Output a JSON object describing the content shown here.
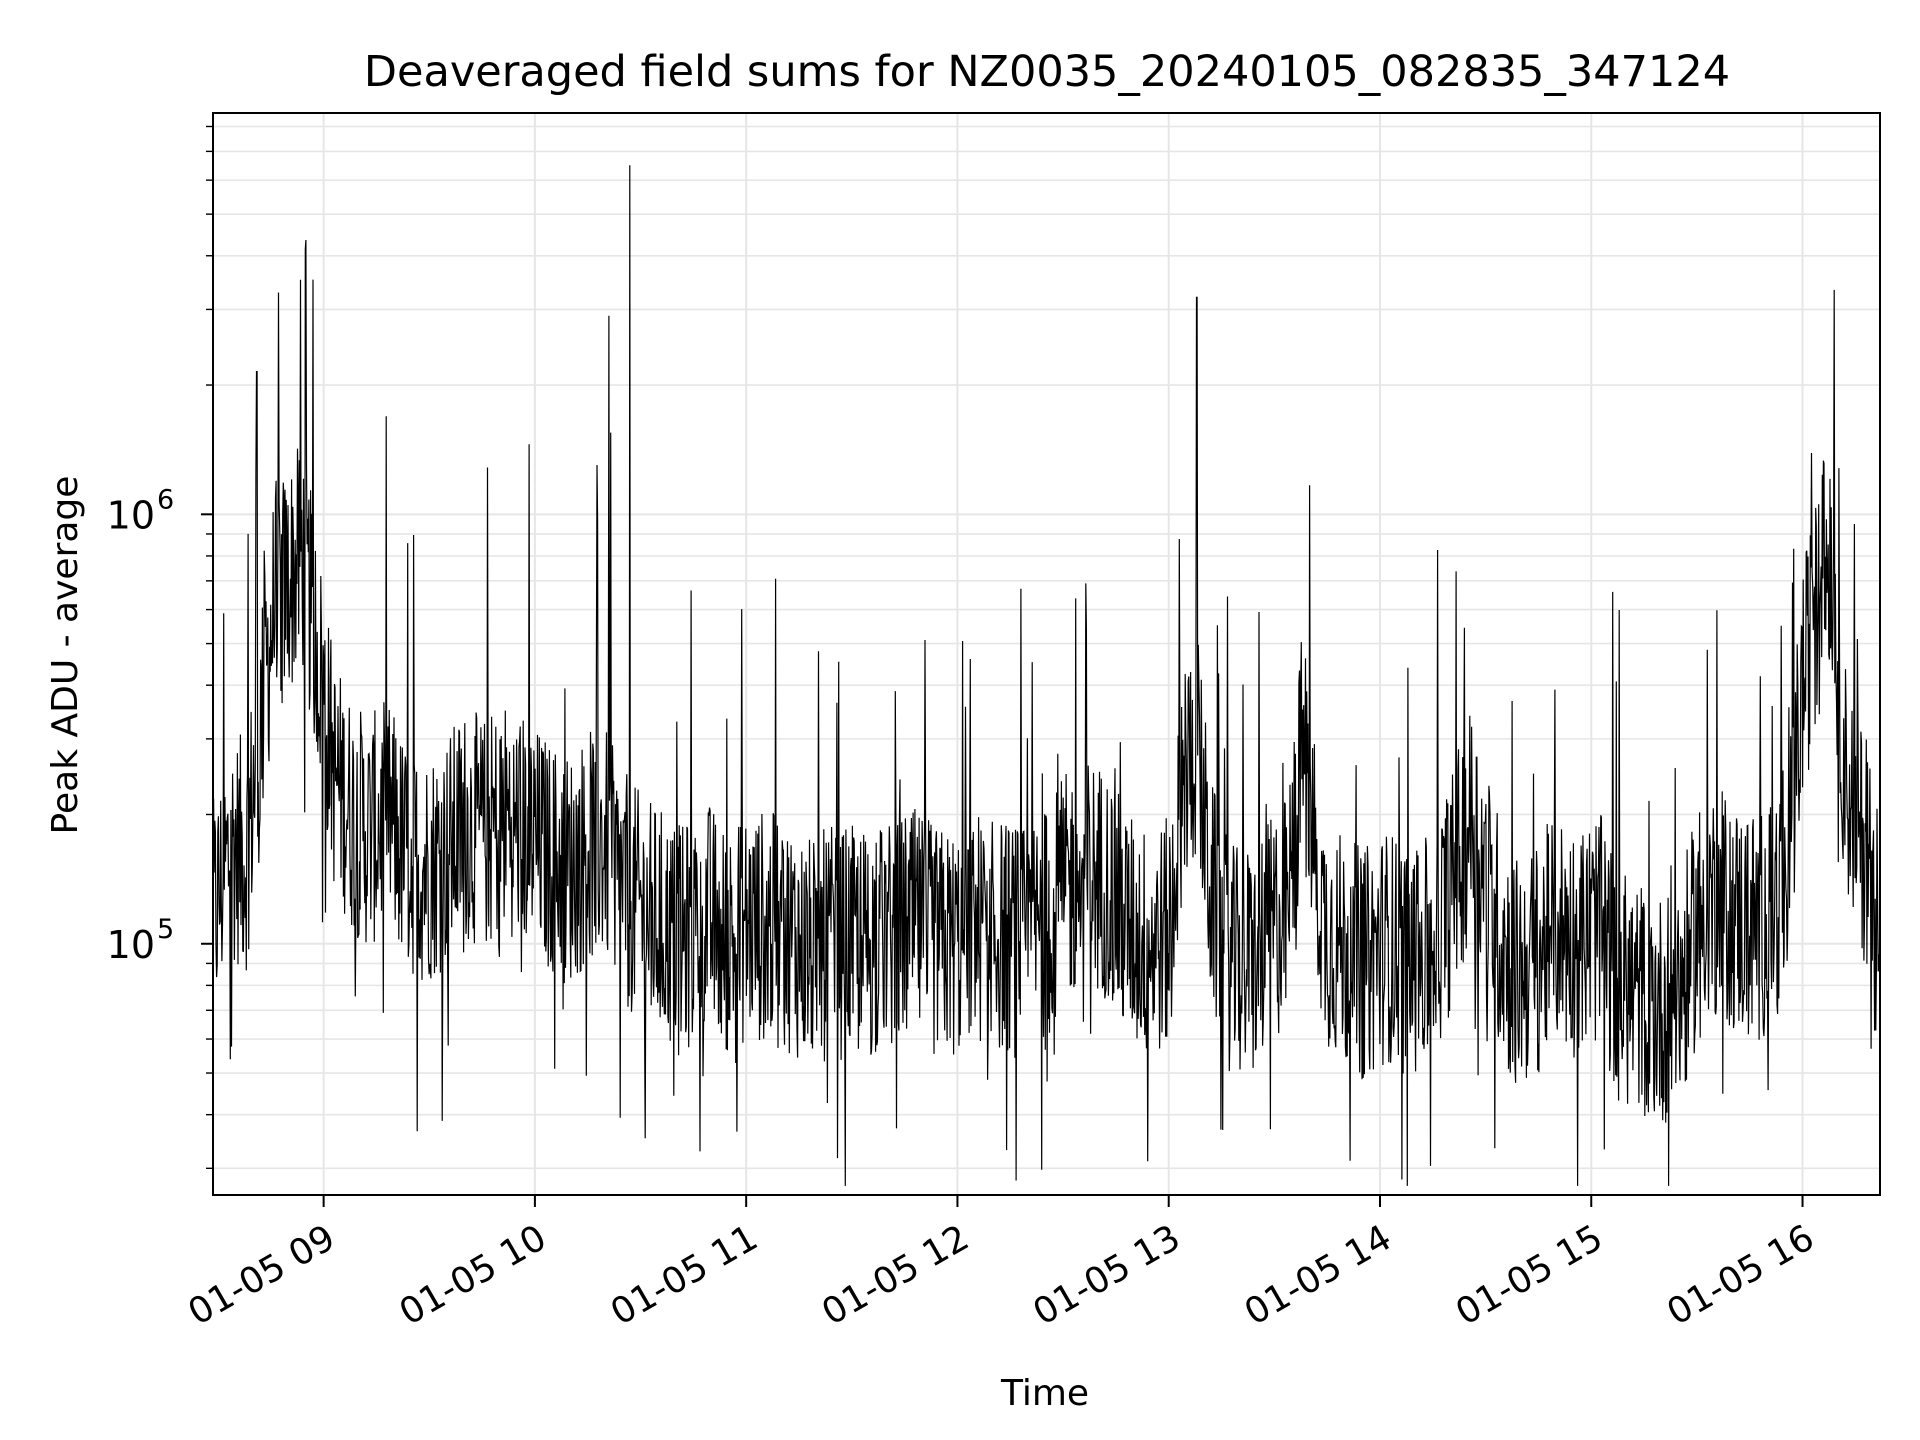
{
  "chart_data": {
    "type": "line",
    "title": "Deaveraged field sums for NZ0035_20240105_082835_347124",
    "xlabel": "Time",
    "ylabel": "Peak ADU - average",
    "yscale": "log",
    "xlim": [
      "2024-01-05 08:28:35",
      "2024-01-05 16:22:00"
    ],
    "ylim": [
      26000,
      8600000
    ],
    "xticks": [
      {
        "value": "2024-01-05 09:00",
        "label": "01-05 09"
      },
      {
        "value": "2024-01-05 10:00",
        "label": "01-05 10"
      },
      {
        "value": "2024-01-05 11:00",
        "label": "01-05 11"
      },
      {
        "value": "2024-01-05 12:00",
        "label": "01-05 12"
      },
      {
        "value": "2024-01-05 13:00",
        "label": "01-05 13"
      },
      {
        "value": "2024-01-05 14:00",
        "label": "01-05 14"
      },
      {
        "value": "2024-01-05 15:00",
        "label": "01-05 15"
      },
      {
        "value": "2024-01-05 16:00",
        "label": "01-05 16"
      }
    ],
    "yticks": [
      {
        "value": 100000,
        "base": "10",
        "exp": "5"
      },
      {
        "value": 1000000,
        "base": "10",
        "exp": "6"
      }
    ],
    "grid": true,
    "line_color": "#000000",
    "grid_color": "#e6e6e6",
    "series": [
      {
        "x": [
          "08:28",
          "08:34",
          "08:38",
          "08:42",
          "08:46",
          "08:50",
          "08:54",
          "08:58",
          "09:03",
          "09:08",
          "09:13",
          "09:18",
          "09:23",
          "09:28",
          "09:34",
          "09:40",
          "09:46",
          "09:52",
          "09:58",
          "10:04",
          "10:10",
          "10:16",
          "10:20",
          "10:24",
          "10:30",
          "10:36",
          "10:42",
          "10:48",
          "10:54",
          "11:00",
          "11:06",
          "11:12",
          "11:18",
          "11:24",
          "11:30",
          "11:36",
          "11:42",
          "11:48",
          "11:54",
          "12:00",
          "12:06",
          "12:12",
          "12:18",
          "12:24",
          "12:30",
          "12:36",
          "12:42",
          "12:48",
          "12:54",
          "13:00",
          "13:04",
          "13:08",
          "13:12",
          "13:18",
          "13:24",
          "13:30",
          "13:34",
          "13:38",
          "13:44",
          "13:50",
          "13:56",
          "14:02",
          "14:08",
          "14:14",
          "14:20",
          "14:26",
          "14:32",
          "14:38",
          "14:44",
          "14:50",
          "14:56",
          "15:02",
          "15:08",
          "15:14",
          "15:20",
          "15:26",
          "15:32",
          "15:38",
          "15:44",
          "15:50",
          "15:56",
          "16:00",
          "16:04",
          "16:08",
          "16:12",
          "16:16",
          "16:21"
        ],
        "y": [
          110000,
          170000,
          160000,
          320000,
          620000,
          700000,
          800000,
          500000,
          250000,
          200000,
          180000,
          200000,
          160000,
          150000,
          160000,
          190000,
          180000,
          200000,
          180000,
          160000,
          150000,
          170000,
          170000,
          140000,
          120000,
          110000,
          100000,
          120000,
          100000,
          110000,
          110000,
          105000,
          95000,
          100000,
          100000,
          100000,
          105000,
          110000,
          100000,
          100000,
          110000,
          105000,
          100000,
          110000,
          130000,
          150000,
          140000,
          110000,
          100000,
          105000,
          240000,
          300000,
          130000,
          90000,
          90000,
          110000,
          120000,
          300000,
          110000,
          95000,
          90000,
          100000,
          90000,
          95000,
          130000,
          200000,
          120000,
          85000,
          90000,
          110000,
          100000,
          110000,
          80000,
          75000,
          70000,
          80000,
          130000,
          120000,
          110000,
          115000,
          150000,
          400000,
          600000,
          850000,
          250000,
          180000,
          150000
        ]
      }
    ]
  }
}
